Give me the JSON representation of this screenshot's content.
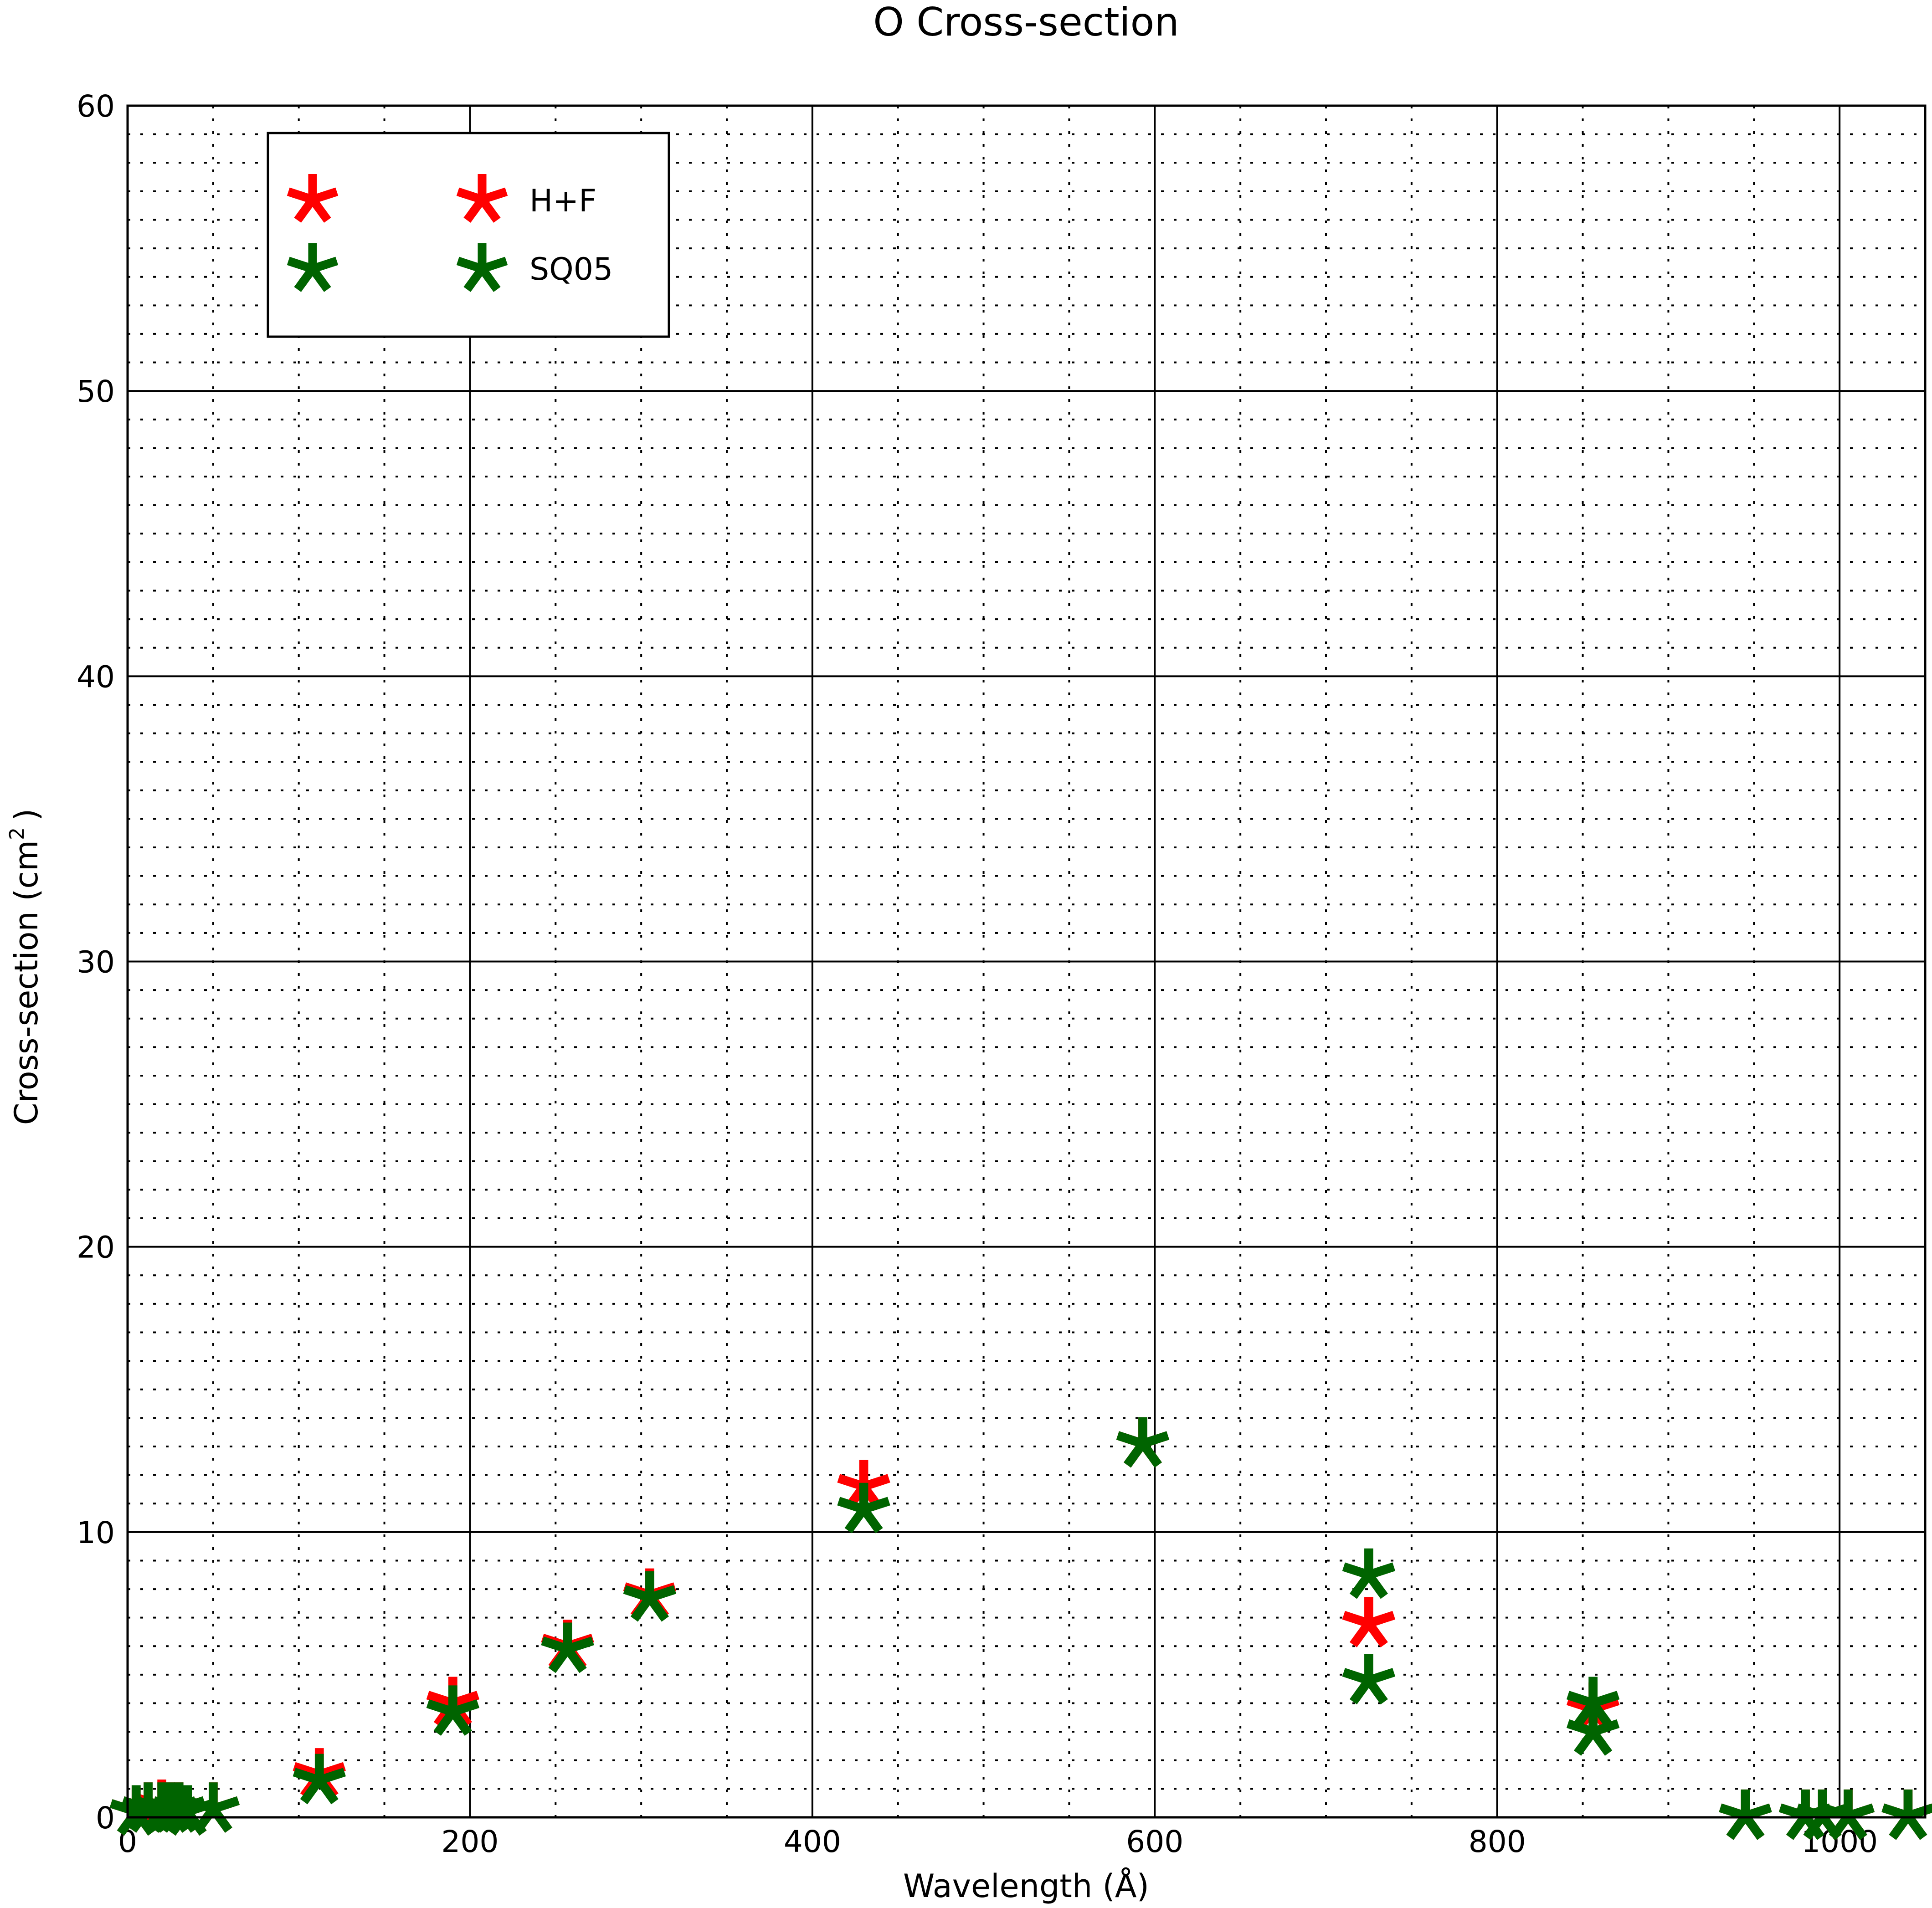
{
  "chart_data": {
    "type": "scatter",
    "title": "O Cross-section",
    "xlabel": "Wavelength (Å)",
    "ylabel": "Cross-section (cm",
    "ylabel_sup": "2",
    "ylabel_close": ")",
    "xlim": [
      0,
      1050
    ],
    "ylim": [
      0,
      60
    ],
    "x_ticks": [
      0,
      200,
      400,
      600,
      800,
      1000
    ],
    "y_ticks": [
      0,
      10,
      20,
      30,
      40,
      50,
      60
    ],
    "grid": true,
    "minor_grid": true,
    "legend_position": "top-left",
    "marker": "asterisk",
    "series": [
      {
        "name": "H+F",
        "color": "#ff0000",
        "x": [
          5,
          12,
          20,
          25,
          30,
          35,
          50,
          112,
          190,
          257,
          305,
          430,
          593,
          725,
          856,
          945,
          980,
          990,
          1005,
          1040
        ],
        "y": [
          0.2,
          0.3,
          0.4,
          0.3,
          0.3,
          0.2,
          0.3,
          1.5,
          4.0,
          6.0,
          7.8,
          11.6,
          13.1,
          6.8,
          3.8,
          0.05,
          0.05,
          0.05,
          0.05,
          0.05
        ]
      },
      {
        "name": "SQ05",
        "color": "#006400",
        "x": [
          5,
          12,
          20,
          25,
          30,
          35,
          50,
          112,
          190,
          257,
          305,
          430,
          593,
          725,
          725,
          856,
          856,
          945,
          980,
          990,
          1005,
          1040
        ],
        "y": [
          0.2,
          0.3,
          0.3,
          0.3,
          0.3,
          0.2,
          0.3,
          1.3,
          3.7,
          5.9,
          7.7,
          10.8,
          13.1,
          8.5,
          4.8,
          4.0,
          3.0,
          0.05,
          0.05,
          0.05,
          0.05,
          0.05
        ]
      }
    ]
  }
}
